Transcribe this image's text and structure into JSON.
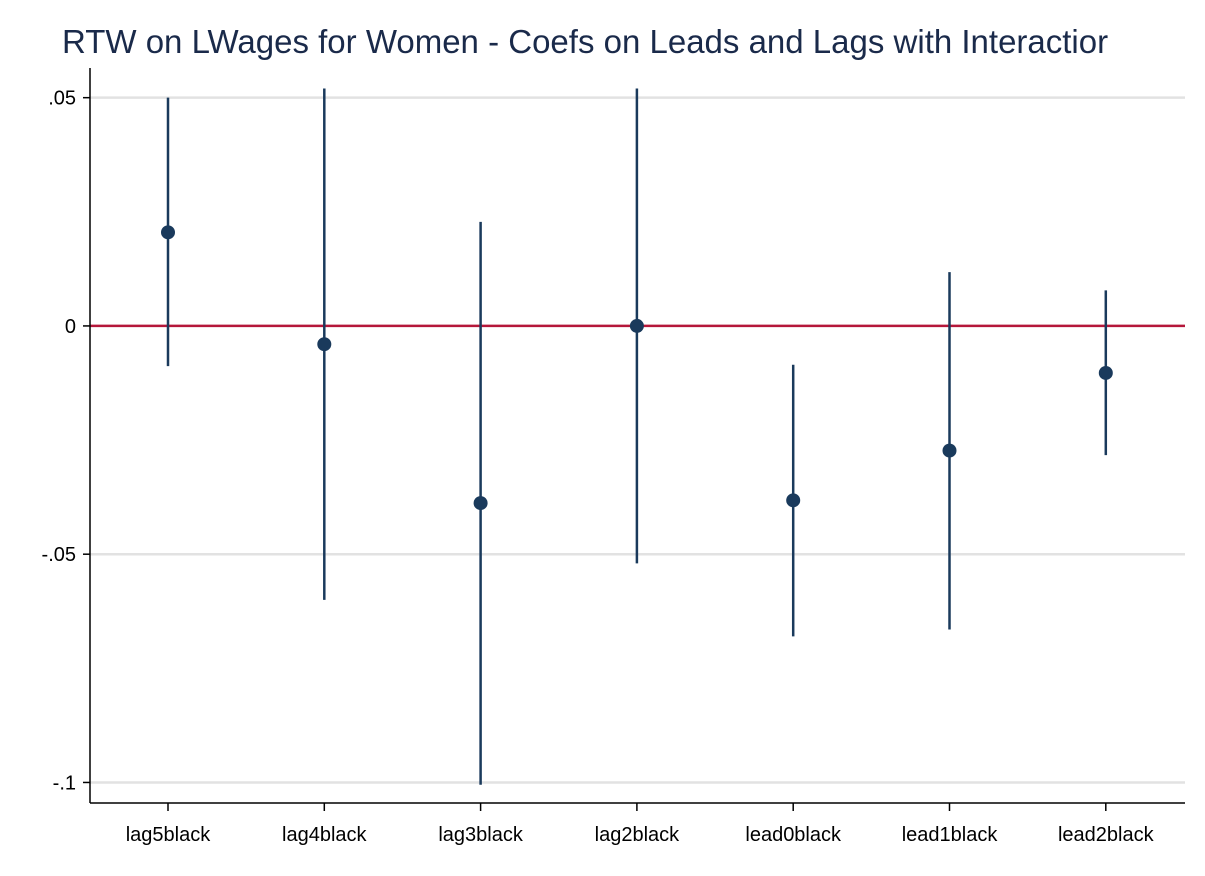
{
  "chart_data": {
    "type": "scatter",
    "title": "RTW on LWages for Women - Coefs on Leads and Lags with Interactior",
    "xlabel": "",
    "ylabel": "",
    "categories": [
      "lag5black",
      "lag4black",
      "lag3black",
      "lag2black",
      "lead0black",
      "lead1black",
      "lead2black"
    ],
    "estimates": [
      0.0205,
      -0.004,
      -0.0388,
      0.0,
      -0.0382,
      -0.0273,
      -0.0103
    ],
    "ci_low": [
      -0.0088,
      -0.06,
      -0.1005,
      -0.052,
      -0.068,
      -0.0665,
      -0.0283
    ],
    "ci_high": [
      0.05,
      0.052,
      0.0228,
      0.052,
      -0.0085,
      0.0118,
      0.0078
    ],
    "yticks": [
      0.05,
      0,
      -0.05,
      -0.1
    ],
    "ytick_labels": [
      ".05",
      "0",
      "-.05",
      "-.1"
    ],
    "ylim": [
      -0.1045,
      0.0565
    ],
    "reference_line": 0,
    "grid": true,
    "colors": {
      "marker": "#1a3a5c",
      "ci_line": "#1a3a5c",
      "reference_line": "#b5173a",
      "grid": "#e2e2e2",
      "axis": "#000000",
      "title": "#1a2a4a"
    }
  }
}
